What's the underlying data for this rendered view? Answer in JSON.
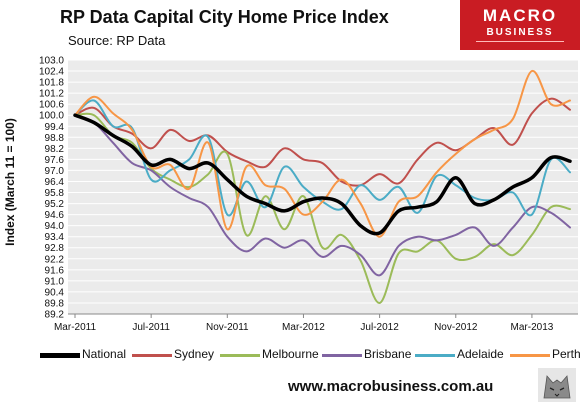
{
  "title": "RP Data Capital City Home Price Index",
  "source": "Source: RP Data",
  "logo": {
    "line1": "MACRO",
    "line2": "BUSINESS",
    "line3": ""
  },
  "footer_url": "www.macrobusiness.com.au",
  "chart_data": {
    "type": "line",
    "ylabel": "Index (March 11 = 100)",
    "xlabel": "",
    "ylim": [
      89.2,
      103.0
    ],
    "yticks": [
      "103.0",
      "102.4",
      "101.8",
      "101.2",
      "100.6",
      "100.0",
      "99.4",
      "98.8",
      "98.2",
      "97.6",
      "97.0",
      "96.4",
      "95.8",
      "95.2",
      "94.6",
      "94.0",
      "93.4",
      "92.8",
      "92.2",
      "91.6",
      "91.0",
      "90.4",
      "89.8",
      "89.2"
    ],
    "xticks": [
      "Mar-2011",
      "Jul-2011",
      "Nov-2011",
      "Mar-2012",
      "Jul-2012",
      "Nov-2012",
      "Mar-2013"
    ],
    "x": [
      "Mar-2011",
      "Apr-2011",
      "May-2011",
      "Jun-2011",
      "Jul-2011",
      "Aug-2011",
      "Sep-2011",
      "Oct-2011",
      "Nov-2011",
      "Dec-2011",
      "Jan-2012",
      "Feb-2012",
      "Mar-2012",
      "Apr-2012",
      "May-2012",
      "Jun-2012",
      "Jul-2012",
      "Aug-2012",
      "Sep-2012",
      "Oct-2012",
      "Nov-2012",
      "Dec-2012",
      "Jan-2013",
      "Feb-2013",
      "Mar-2013",
      "Apr-2013",
      "May-2013"
    ],
    "grid": true,
    "legend": "bottom",
    "series": [
      {
        "name": "National",
        "color": "#000000",
        "width": 3.5,
        "values": [
          100.0,
          99.6,
          98.9,
          98.3,
          97.3,
          97.6,
          97.1,
          97.4,
          96.5,
          95.6,
          95.2,
          94.8,
          95.3,
          95.5,
          95.2,
          94.0,
          93.6,
          94.8,
          95.0,
          95.3,
          96.6,
          95.2,
          95.4,
          96.1,
          96.6,
          97.7,
          97.5
        ]
      },
      {
        "name": "Sydney",
        "color": "#c0504d",
        "width": 2,
        "values": [
          100.0,
          100.4,
          99.4,
          99.0,
          98.2,
          99.2,
          98.6,
          98.9,
          98.0,
          97.5,
          97.2,
          98.2,
          97.6,
          97.4,
          96.4,
          96.2,
          96.8,
          96.3,
          97.6,
          98.5,
          98.1,
          98.7,
          99.3,
          98.4,
          100.1,
          100.9,
          100.3
        ]
      },
      {
        "name": "Melbourne",
        "color": "#9bbb59",
        "width": 2,
        "values": [
          100.0,
          100.0,
          98.9,
          98.5,
          97.1,
          96.5,
          96.1,
          96.8,
          97.9,
          93.5,
          95.6,
          93.8,
          95.6,
          92.8,
          93.5,
          92.1,
          89.8,
          92.5,
          92.6,
          93.2,
          92.2,
          92.3,
          93.0,
          92.4,
          93.5,
          95.0,
          94.9
        ]
      },
      {
        "name": "Brisbane",
        "color": "#8064a2",
        "width": 2,
        "values": [
          100.0,
          99.6,
          98.5,
          97.4,
          97.0,
          96.1,
          95.5,
          95.0,
          93.4,
          92.6,
          93.3,
          92.8,
          93.2,
          92.3,
          92.9,
          92.4,
          91.3,
          92.9,
          93.4,
          93.2,
          93.5,
          93.9,
          92.9,
          93.9,
          95.0,
          94.7,
          93.9
        ]
      },
      {
        "name": "Adelaide",
        "color": "#4bacc6",
        "width": 2,
        "values": [
          100.0,
          100.8,
          99.4,
          99.3,
          96.5,
          97.0,
          97.6,
          98.8,
          94.6,
          96.4,
          95.0,
          97.2,
          96.1,
          95.3,
          94.9,
          96.2,
          95.4,
          96.1,
          94.7,
          96.7,
          96.2,
          95.5,
          95.4,
          95.8,
          94.6,
          97.6,
          96.9
        ]
      },
      {
        "name": "Perth",
        "color": "#f79646",
        "width": 2,
        "values": [
          100.0,
          101.0,
          100.1,
          99.2,
          97.2,
          97.3,
          96.0,
          98.5,
          93.8,
          97.2,
          96.2,
          96.0,
          94.6,
          95.3,
          96.5,
          95.2,
          93.4,
          95.3,
          95.6,
          96.9,
          97.9,
          98.7,
          99.2,
          99.8,
          102.4,
          100.6,
          100.8
        ]
      }
    ]
  }
}
